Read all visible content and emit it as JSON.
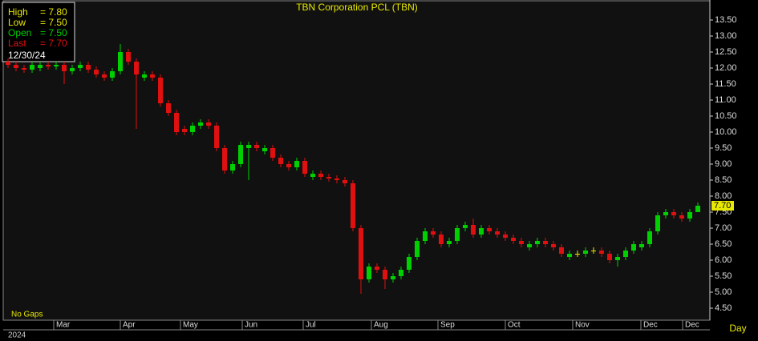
{
  "chart_data": {
    "type": "candlestick",
    "title": "TBN Corporation PCL (TBN)",
    "x": [
      0,
      1,
      2,
      3,
      4,
      5,
      6,
      7,
      8,
      9,
      10,
      11,
      12,
      13,
      14,
      15,
      16,
      17,
      18,
      19,
      20,
      21,
      22,
      23,
      24,
      25,
      26,
      27,
      28,
      29,
      30,
      31,
      32,
      33,
      34,
      35,
      36,
      37,
      38,
      39,
      40,
      41,
      42,
      43,
      44,
      45,
      46,
      47,
      48,
      49,
      50,
      51,
      52,
      53,
      54,
      55,
      56,
      57,
      58,
      59,
      60,
      61,
      62,
      63,
      64,
      65,
      66,
      67,
      68,
      69,
      70,
      71,
      72,
      73,
      74,
      75,
      76,
      77,
      78,
      79,
      80,
      81,
      82,
      83,
      84,
      85,
      86
    ],
    "open": [
      12.2,
      12.1,
      12.0,
      11.95,
      12.0,
      12.1,
      12.05,
      12.1,
      11.9,
      12.0,
      12.1,
      11.95,
      11.8,
      11.7,
      11.9,
      12.5,
      12.2,
      11.7,
      11.8,
      11.7,
      10.9,
      10.6,
      10.1,
      10.0,
      10.2,
      10.3,
      10.2,
      9.5,
      8.8,
      9.0,
      9.5,
      9.6,
      9.4,
      9.5,
      9.2,
      9.0,
      8.9,
      9.1,
      8.6,
      8.7,
      8.6,
      8.55,
      8.5,
      8.4,
      7.0,
      5.4,
      5.8,
      5.7,
      5.4,
      5.5,
      5.7,
      6.1,
      6.6,
      6.9,
      6.8,
      6.5,
      6.6,
      7.0,
      7.1,
      6.8,
      7.0,
      6.9,
      6.8,
      6.7,
      6.6,
      6.4,
      6.5,
      6.6,
      6.5,
      6.4,
      6.1,
      6.2,
      6.2,
      6.3,
      6.3,
      6.2,
      6.0,
      6.1,
      6.3,
      6.4,
      6.5,
      6.9,
      7.4,
      7.5,
      7.4,
      7.3,
      7.5
    ],
    "high": [
      12.3,
      12.2,
      12.1,
      12.2,
      12.2,
      12.2,
      12.2,
      12.2,
      12.1,
      12.2,
      12.2,
      12.05,
      11.9,
      12.0,
      12.75,
      12.6,
      12.3,
      11.9,
      11.9,
      11.8,
      11.0,
      10.7,
      10.2,
      10.3,
      10.4,
      10.4,
      10.3,
      9.6,
      9.1,
      9.7,
      9.7,
      9.7,
      9.6,
      9.6,
      9.3,
      9.1,
      9.2,
      9.2,
      8.8,
      8.8,
      8.7,
      8.65,
      8.6,
      8.5,
      7.1,
      5.9,
      5.9,
      5.8,
      5.6,
      5.8,
      6.2,
      6.7,
      7.0,
      7.0,
      6.9,
      6.7,
      7.1,
      7.2,
      7.3,
      7.1,
      7.1,
      7.0,
      6.9,
      6.8,
      6.7,
      6.6,
      6.7,
      6.7,
      6.6,
      6.5,
      6.3,
      6.3,
      6.4,
      6.4,
      6.4,
      6.3,
      6.2,
      6.4,
      6.6,
      6.6,
      7.0,
      7.5,
      7.6,
      7.6,
      7.5,
      7.6,
      7.8
    ],
    "low": [
      12.0,
      11.9,
      11.85,
      11.85,
      11.9,
      11.95,
      11.95,
      11.5,
      11.8,
      11.9,
      11.85,
      11.7,
      11.6,
      11.6,
      11.8,
      12.1,
      10.1,
      11.6,
      11.6,
      10.8,
      10.5,
      9.9,
      9.9,
      9.9,
      10.1,
      10.1,
      9.4,
      8.7,
      8.7,
      8.9,
      8.5,
      9.4,
      9.3,
      9.1,
      8.9,
      8.8,
      8.8,
      8.6,
      8.5,
      8.5,
      8.45,
      8.4,
      8.3,
      6.9,
      4.95,
      5.3,
      5.6,
      5.1,
      5.3,
      5.4,
      5.6,
      6.0,
      6.5,
      6.7,
      6.4,
      6.4,
      6.5,
      6.9,
      6.7,
      6.7,
      6.8,
      6.7,
      6.6,
      6.5,
      6.4,
      6.3,
      6.4,
      6.4,
      6.3,
      6.1,
      6.0,
      6.1,
      6.1,
      6.2,
      6.1,
      5.9,
      5.8,
      6.0,
      6.2,
      6.3,
      6.4,
      6.8,
      7.3,
      7.3,
      7.2,
      7.2,
      7.5
    ],
    "close": [
      12.1,
      12.0,
      11.95,
      12.1,
      12.1,
      12.05,
      12.1,
      11.9,
      12.0,
      12.1,
      11.95,
      11.8,
      11.7,
      11.9,
      12.5,
      12.2,
      11.8,
      11.8,
      11.7,
      10.9,
      10.6,
      10.0,
      10.0,
      10.2,
      10.3,
      10.2,
      9.5,
      8.8,
      9.0,
      9.6,
      9.6,
      9.5,
      9.5,
      9.2,
      9.0,
      8.9,
      9.1,
      8.7,
      8.7,
      8.6,
      8.55,
      8.5,
      8.4,
      7.0,
      5.4,
      5.8,
      5.7,
      5.4,
      5.5,
      5.7,
      6.1,
      6.6,
      6.9,
      6.8,
      6.5,
      6.6,
      7.0,
      7.1,
      6.8,
      7.0,
      6.9,
      6.8,
      6.7,
      6.6,
      6.5,
      6.5,
      6.6,
      6.5,
      6.4,
      6.2,
      6.2,
      6.2,
      6.3,
      6.3,
      6.2,
      6.0,
      6.1,
      6.3,
      6.5,
      6.5,
      6.9,
      7.4,
      7.5,
      7.4,
      7.3,
      7.5,
      7.7
    ],
    "up_color": "#00d000",
    "down_color": "#e01010",
    "flat_color": "#e8e800",
    "xlim": [
      -0.5,
      87.5
    ],
    "ylim": [
      4.125,
      14.075
    ],
    "xticks": [
      {
        "value": 5.7,
        "label": "Mar"
      },
      {
        "value": 14,
        "label": "Apr"
      },
      {
        "value": 21.5,
        "label": "May"
      },
      {
        "value": 29.2,
        "label": "Jun"
      },
      {
        "value": 36.8,
        "label": "Jul"
      },
      {
        "value": 45.3,
        "label": "Aug"
      },
      {
        "value": 53.6,
        "label": "Sep"
      },
      {
        "value": 62,
        "label": "Oct"
      },
      {
        "value": 70.4,
        "label": "Nov"
      },
      {
        "value": 78.9,
        "label": "Dec"
      },
      {
        "value": 84.1,
        "label": "Dec"
      }
    ],
    "yticks": [
      {
        "value": 4.5,
        "label": "4.50"
      },
      {
        "value": 5,
        "label": "5.00"
      },
      {
        "value": 5.5,
        "label": "5.50"
      },
      {
        "value": 6,
        "label": "6.00"
      },
      {
        "value": 6.5,
        "label": "6.50"
      },
      {
        "value": 7,
        "label": "7.00"
      },
      {
        "value": 7.5,
        "label": "7.50"
      },
      {
        "value": 8,
        "label": "8.00"
      },
      {
        "value": 8.5,
        "label": "8.50"
      },
      {
        "value": 9,
        "label": "9.00"
      },
      {
        "value": 9.5,
        "label": "9.50"
      },
      {
        "value": 10,
        "label": "10.00"
      },
      {
        "value": 10.5,
        "label": "10.50"
      },
      {
        "value": 11,
        "label": "11.00"
      },
      {
        "value": 11.5,
        "label": "11.50"
      },
      {
        "value": 12,
        "label": "12.00"
      },
      {
        "value": 12.5,
        "label": "12.50"
      },
      {
        "value": 13,
        "label": "13.00"
      },
      {
        "value": 13.5,
        "label": "13.50"
      }
    ],
    "last_label": "7.70",
    "year_label": "2024",
    "gaps_label": "No Gaps",
    "period_label": "Day",
    "info": {
      "rows": [
        {
          "label": "High",
          "value": "= 7.80",
          "color": "#e8e800"
        },
        {
          "label": "Low",
          "value": "= 7.50",
          "color": "#e8e800"
        },
        {
          "label": "Open",
          "value": "= 7.50",
          "color": "#00d000"
        },
        {
          "label": "Last",
          "value": "= 7.70",
          "color": "#e01010"
        }
      ],
      "date": "12/30/24"
    }
  }
}
